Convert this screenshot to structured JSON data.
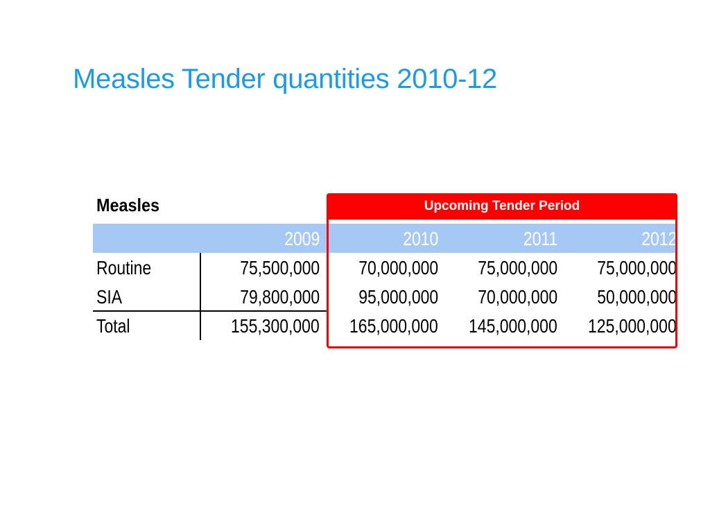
{
  "slide": {
    "title": "Measles Tender quantities 2010-12"
  },
  "table": {
    "label": "Measles",
    "tender_header": "Upcoming Tender Period",
    "years": [
      "2009",
      "2010",
      "2011",
      "2012"
    ],
    "rows": [
      {
        "label": "Routine",
        "values": [
          "75,500,000",
          "70,000,000",
          "75,000,000",
          "75,000,000"
        ]
      },
      {
        "label": "SIA",
        "values": [
          "79,800,000",
          "95,000,000",
          "70,000,000",
          "50,000,000"
        ]
      },
      {
        "label": "Total",
        "values": [
          "155,300,000",
          "165,000,000",
          "145,000,000",
          "125,000,000"
        ]
      }
    ]
  },
  "colors": {
    "title": "#1a9ae8",
    "tender_highlight": "#ff0000",
    "year_band": "#a6c8f4"
  }
}
